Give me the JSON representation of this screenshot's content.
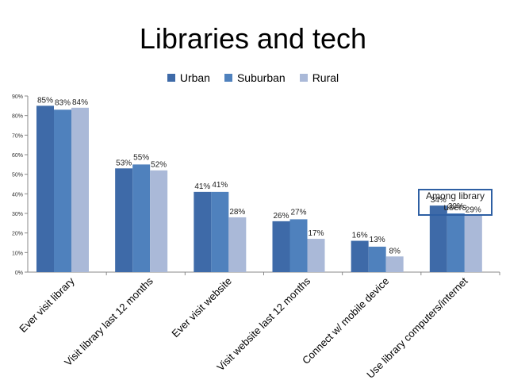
{
  "chart_data": {
    "type": "bar",
    "title": "Libraries and tech",
    "categories": [
      "Ever visit library",
      "Visit library last 12 months",
      "Ever visit website",
      "Visit website last 12 months",
      "Connect w/ mobile device",
      "Use library computers/internet"
    ],
    "series": [
      {
        "name": "Urban",
        "color": "#3e6aa8",
        "values": [
          85,
          53,
          41,
          26,
          16,
          34
        ],
        "labels": [
          "85%",
          "53%",
          "41%",
          "26%",
          "16%",
          "34%"
        ]
      },
      {
        "name": "Suburban",
        "color": "#4f81bd",
        "values": [
          83,
          55,
          41,
          27,
          13,
          30
        ],
        "labels": [
          "83%",
          "55%",
          "41%",
          "27%",
          "13%",
          "30%"
        ]
      },
      {
        "name": "Rural",
        "color": "#aab9d8",
        "values": [
          84,
          52,
          28,
          17,
          8,
          29
        ],
        "labels": [
          "84%",
          "52%",
          "28%",
          "17%",
          "8%",
          "29%"
        ]
      }
    ],
    "yticks": [
      "0%",
      "10%",
      "20%",
      "30%",
      "40%",
      "50%",
      "60%",
      "70%",
      "80%",
      "90%"
    ],
    "ylim": [
      0,
      90
    ],
    "legend_position": "top-center",
    "annotation": "Among library users"
  }
}
